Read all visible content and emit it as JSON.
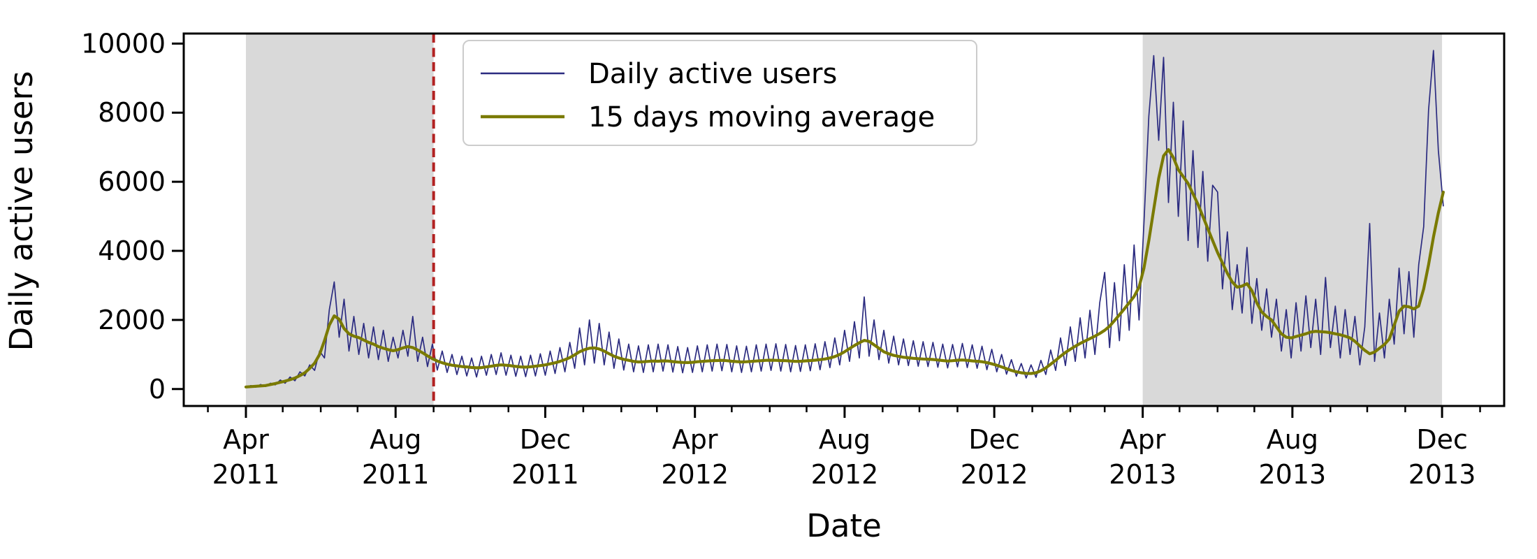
{
  "figure": {
    "xlabel": "Date",
    "ylabel": "Daily active users",
    "background": "#ffffff",
    "shaded_band_color": "#d9d9d9",
    "event_line_color": "#b22222"
  },
  "chart_data": {
    "type": "line",
    "xlabel": "Date",
    "ylabel": "Daily active users",
    "x_axis_start": "2011-04-01",
    "x_unit": "days since 2011-04-01",
    "sample_interval_days": 4,
    "xlim_days": [
      -50.5,
      1025
    ],
    "ylim": [
      -490,
      10290
    ],
    "yticks": [
      0,
      2000,
      4000,
      6000,
      8000,
      10000
    ],
    "xticks_major": [
      {
        "day": 0,
        "month": "Apr",
        "year": "2011"
      },
      {
        "day": 122,
        "month": "Aug",
        "year": "2011"
      },
      {
        "day": 244,
        "month": "Dec",
        "year": "2011"
      },
      {
        "day": 366,
        "month": "Apr",
        "year": "2012"
      },
      {
        "day": 488,
        "month": "Aug",
        "year": "2012"
      },
      {
        "day": 610,
        "month": "Dec",
        "year": "2012"
      },
      {
        "day": 731,
        "month": "Apr",
        "year": "2013"
      },
      {
        "day": 853,
        "month": "Aug",
        "year": "2013"
      },
      {
        "day": 975,
        "month": "Dec",
        "year": "2013"
      }
    ],
    "xticks_minor_days": [
      -31,
      0,
      30,
      61,
      91,
      122,
      153,
      183,
      214,
      244,
      275,
      306,
      335,
      366,
      396,
      427,
      457,
      488,
      519,
      549,
      580,
      610,
      641,
      672,
      700,
      731,
      761,
      792,
      822,
      853,
      884,
      914,
      945,
      975,
      1006
    ],
    "shaded_regions": [
      {
        "start_day": 0,
        "end_day": 153,
        "note": "Apr 2011 - Sep 2011"
      },
      {
        "start_day": 731,
        "end_day": 975,
        "note": "Apr 2013 - Dec 2013"
      }
    ],
    "vline": {
      "day": 153,
      "date": "2011-09-01",
      "style": "dashed",
      "color": "#b22222"
    },
    "legend_position": "upper left",
    "series": [
      {
        "name": "Daily active users",
        "color": "#2b2b80",
        "linewidth": 1.7,
        "values": [
          40,
          100,
          55,
          130,
          75,
          170,
          120,
          260,
          170,
          350,
          240,
          500,
          380,
          700,
          540,
          1100,
          900,
          2300,
          3100,
          1500,
          2600,
          1100,
          2100,
          1000,
          1900,
          900,
          1800,
          850,
          1700,
          800,
          1500,
          900,
          1700,
          950,
          2100,
          800,
          1500,
          650,
          1300,
          550,
          1100,
          480,
          1000,
          420,
          950,
          380,
          900,
          350,
          950,
          400,
          1000,
          420,
          1050,
          400,
          980,
          370,
          950,
          360,
          980,
          380,
          1020,
          400,
          1100,
          450,
          1200,
          500,
          1350,
          600,
          1770,
          700,
          2000,
          750,
          1900,
          700,
          1650,
          600,
          1450,
          550,
          1300,
          500,
          1250,
          480,
          1280,
          500,
          1300,
          520,
          1280,
          490,
          1230,
          470,
          1200,
          480,
          1250,
          500,
          1280,
          520,
          1300,
          530,
          1290,
          500,
          1250,
          480,
          1240,
          500,
          1280,
          520,
          1300,
          540,
          1310,
          520,
          1290,
          500,
          1260,
          510,
          1280,
          530,
          1310,
          560,
          1370,
          620,
          1480,
          700,
          1700,
          800,
          1950,
          900,
          2665,
          950,
          2000,
          850,
          1700,
          750,
          1530,
          700,
          1450,
          680,
          1400,
          660,
          1370,
          650,
          1350,
          630,
          1300,
          610,
          1290,
          640,
          1320,
          620,
          1280,
          600,
          1240,
          560,
          1150,
          500,
          1000,
          430,
          850,
          370,
          740,
          320,
          700,
          340,
          830,
          420,
          1130,
          540,
          1480,
          680,
          1800,
          800,
          2060,
          900,
          2280,
          1000,
          2510,
          3375,
          1200,
          3080,
          1400,
          3600,
          1700,
          4170,
          2000,
          4800,
          7900,
          9650,
          7200,
          9600,
          5400,
          8300,
          5000,
          7760,
          4300,
          6900,
          4100,
          6300,
          3700,
          5900,
          5700,
          2900,
          4550,
          2300,
          3600,
          2200,
          4100,
          1900,
          3200,
          1700,
          2900,
          1500,
          2600,
          1100,
          2300,
          900,
          2500,
          1100,
          2700,
          1200,
          2600,
          1000,
          3230,
          1200,
          2400,
          900,
          2300,
          1000,
          2100,
          700,
          1800,
          4790,
          800,
          2200,
          900,
          2600,
          1300,
          3500,
          1600,
          3400,
          1500,
          3600,
          4700,
          8080,
          9800,
          6900,
          5300
        ]
      },
      {
        "name": "15 days moving average",
        "color": "#7a7a00",
        "linewidth": 4.2,
        "values": [
          60,
          70,
          80,
          90,
          100,
          130,
          160,
          195,
          230,
          270,
          320,
          390,
          470,
          600,
          750,
          1000,
          1400,
          1850,
          2120,
          2020,
          1750,
          1600,
          1530,
          1490,
          1420,
          1350,
          1300,
          1230,
          1180,
          1140,
          1110,
          1140,
          1190,
          1230,
          1200,
          1130,
          1050,
          960,
          880,
          810,
          760,
          720,
          690,
          670,
          650,
          640,
          625,
          615,
          620,
          640,
          660,
          685,
          700,
          690,
          675,
          655,
          640,
          635,
          645,
          660,
          680,
          700,
          730,
          760,
          800,
          850,
          910,
          990,
          1080,
          1140,
          1180,
          1190,
          1160,
          1100,
          1020,
          950,
          900,
          860,
          830,
          800,
          785,
          790,
          800,
          810,
          805,
          815,
          810,
          795,
          780,
          770,
          765,
          775,
          790,
          800,
          810,
          820,
          825,
          830,
          820,
          805,
          795,
          785,
          790,
          800,
          810,
          820,
          830,
          835,
          830,
          825,
          820,
          810,
          800,
          805,
          815,
          825,
          835,
          850,
          870,
          900,
          940,
          1000,
          1080,
          1170,
          1260,
          1340,
          1410,
          1380,
          1280,
          1180,
          1080,
          1020,
          975,
          945,
          920,
          905,
          890,
          880,
          870,
          865,
          855,
          840,
          825,
          810,
          820,
          835,
          840,
          830,
          815,
          805,
          790,
          765,
          730,
          690,
          640,
          590,
          540,
          500,
          470,
          455,
          450,
          470,
          530,
          610,
          720,
          830,
          950,
          1060,
          1150,
          1240,
          1320,
          1390,
          1460,
          1530,
          1610,
          1700,
          1820,
          1980,
          2150,
          2320,
          2500,
          2680,
          2950,
          3500,
          4300,
          5200,
          6100,
          6750,
          6930,
          6700,
          6350,
          6150,
          5950,
          5650,
          5350,
          5000,
          4650,
          4300,
          3950,
          3650,
          3350,
          3100,
          2950,
          2980,
          3050,
          2850,
          2500,
          2230,
          2100,
          2000,
          1800,
          1600,
          1500,
          1480,
          1520,
          1560,
          1600,
          1650,
          1670,
          1660,
          1650,
          1630,
          1600,
          1570,
          1530,
          1480,
          1380,
          1250,
          1120,
          1020,
          1070,
          1180,
          1290,
          1450,
          1850,
          2250,
          2400,
          2380,
          2320,
          2400,
          2900,
          3600,
          4400,
          5100,
          5700
        ]
      }
    ]
  }
}
